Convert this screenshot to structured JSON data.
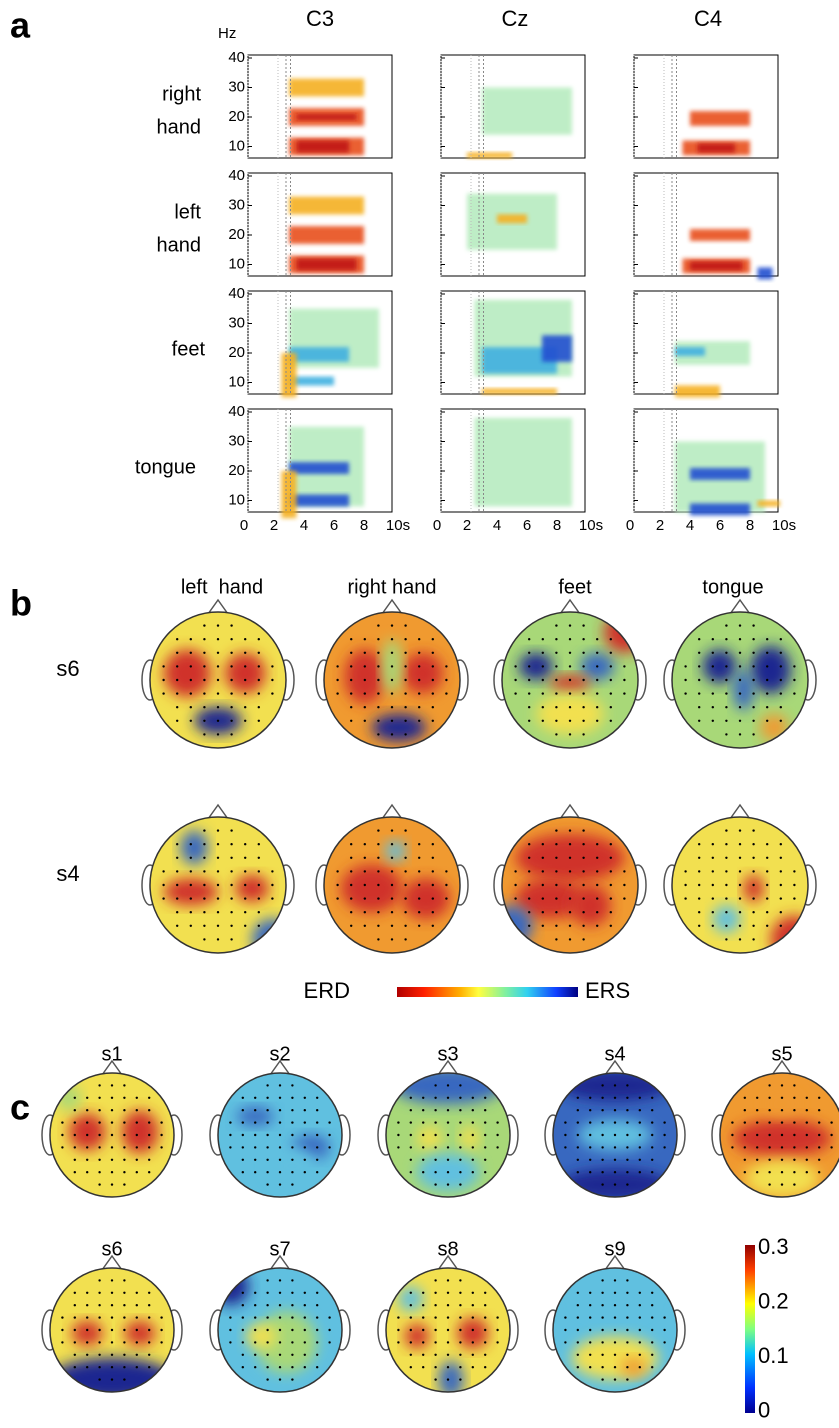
{
  "panel_a": {
    "label": "a",
    "y_unit": "Hz",
    "columns": [
      "C3",
      "Cz",
      "C4"
    ],
    "rows": [
      [
        "right",
        "hand"
      ],
      [
        "left",
        "hand"
      ],
      [
        "feet"
      ],
      [
        "tongue"
      ]
    ],
    "yticks": [
      40,
      30,
      20,
      10
    ],
    "xticks": [
      0,
      2,
      4,
      6,
      8,
      "10s"
    ]
  },
  "panel_b": {
    "label": "b",
    "columns": [
      "left  hand",
      "right hand",
      "feet",
      "tongue"
    ],
    "rows": [
      "s6",
      "s4"
    ],
    "colorbar": {
      "left": "ERD",
      "right": "ERS"
    }
  },
  "panel_c": {
    "label": "c",
    "subjects": [
      "s1",
      "s2",
      "s3",
      "s4",
      "s5",
      "s6",
      "s7",
      "s8",
      "s9"
    ],
    "colorbar_ticks": [
      0.3,
      0.2,
      0.1,
      0
    ]
  }
}
